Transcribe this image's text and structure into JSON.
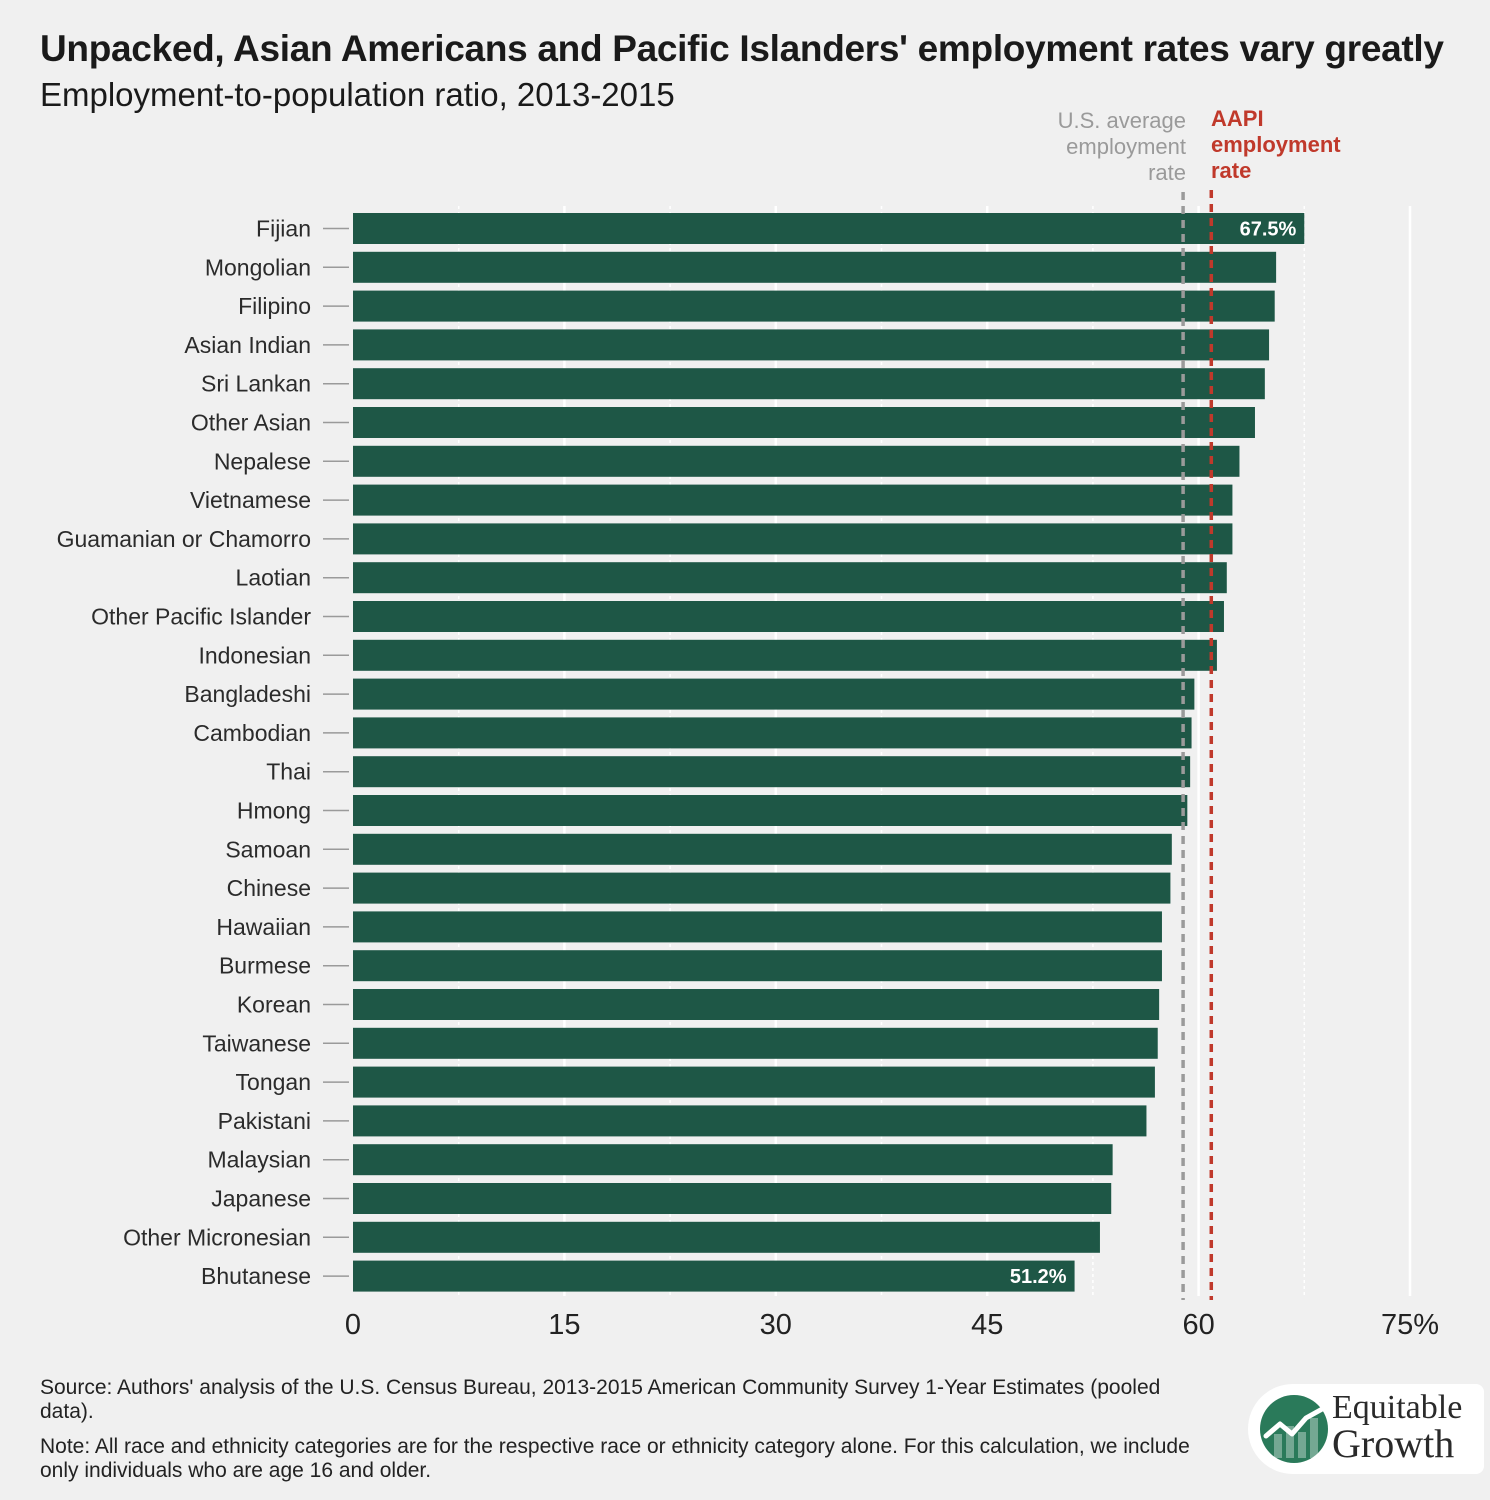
{
  "title": "Unpacked, Asian Americans and Pacific Islanders' employment rates vary greatly",
  "subtitle": "Employment-to-population ratio, 2013-2015",
  "reference_lines": {
    "us_average": {
      "label_lines": [
        "U.S. average",
        "employment",
        "rate"
      ],
      "value": 58.9,
      "color": "#9a9a9a"
    },
    "aapi": {
      "label_lines": [
        "AAPI",
        "employment",
        "rate"
      ],
      "value": 60.9,
      "color": "#c0392b"
    }
  },
  "colors": {
    "bar": "#1e5746",
    "background": "#f0f0f0",
    "gridline": "#ffffff",
    "axis_text": "#222222"
  },
  "chart_data": {
    "type": "bar",
    "orientation": "horizontal",
    "categories": [
      "Fijian",
      "Mongolian",
      "Filipino",
      "Asian Indian",
      "Sri Lankan",
      "Other Asian",
      "Nepalese",
      "Vietnamese",
      "Guamanian or Chamorro",
      "Laotian",
      "Other Pacific Islander",
      "Indonesian",
      "Bangladeshi",
      "Cambodian",
      "Thai",
      "Hmong",
      "Samoan",
      "Chinese",
      "Hawaiian",
      "Burmese",
      "Korean",
      "Taiwanese",
      "Tongan",
      "Pakistani",
      "Malaysian",
      "Japanese",
      "Other Micronesian",
      "Bhutanese"
    ],
    "values": [
      67.5,
      65.5,
      65.4,
      65.0,
      64.7,
      64.0,
      62.9,
      62.4,
      62.4,
      62.0,
      61.8,
      61.3,
      59.7,
      59.5,
      59.4,
      59.2,
      58.1,
      58.0,
      57.4,
      57.4,
      57.2,
      57.1,
      56.9,
      56.3,
      53.9,
      53.8,
      53.0,
      51.2
    ],
    "value_labels": [
      {
        "category": "Fijian",
        "text": "67.5%"
      },
      {
        "category": "Bhutanese",
        "text": "51.2%"
      }
    ],
    "x_ticks": [
      "0",
      "15",
      "30",
      "45",
      "60",
      "75%"
    ],
    "x_tick_values": [
      0,
      15,
      30,
      45,
      60,
      75
    ],
    "xlim": [
      0,
      75
    ],
    "grid": true
  },
  "footer": {
    "source": "Source: Authors' analysis of the U.S. Census Bureau, 2013-2015 American Community Survey 1-Year Estimates (pooled data).",
    "note": "Note: All race and ethnicity categories are for the respective race or ethnicity category alone. For this calculation, we include only individuals who are age 16 and older."
  },
  "logo": {
    "line1": "Equitable",
    "line2": "Growth",
    "icon": "growth-chart-logo-icon"
  }
}
